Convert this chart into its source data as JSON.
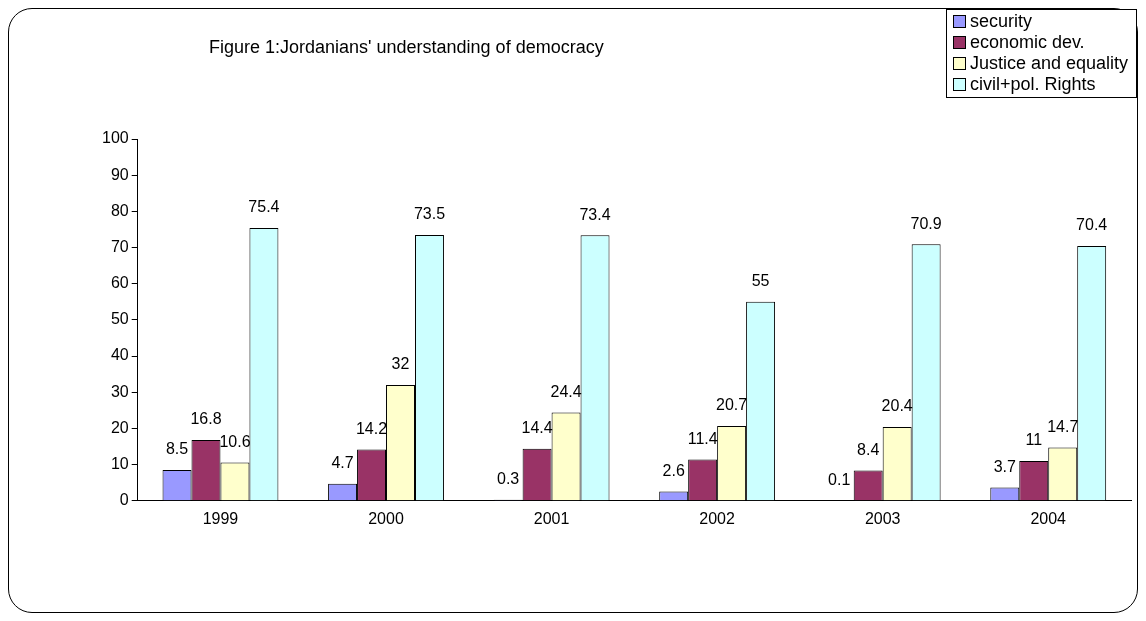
{
  "chart_data": {
    "type": "bar",
    "title": "Figure 1:Jordanians' understanding of democracy",
    "categories": [
      "1999",
      "2000",
      "2001",
      "2002",
      "2003",
      "2004"
    ],
    "series": [
      {
        "name": "security",
        "color": "#9999ff",
        "values": [
          8.5,
          4.7,
          0.3,
          2.6,
          0.1,
          3.7
        ]
      },
      {
        "name": "economic dev.",
        "color": "#993366",
        "values": [
          16.8,
          14.2,
          14.4,
          11.4,
          8.4,
          11
        ]
      },
      {
        "name": "Justice and equality",
        "color": "#ffffcc",
        "values": [
          10.6,
          32,
          24.4,
          20.7,
          20.4,
          14.7
        ]
      },
      {
        "name": "civil+pol. Rights",
        "color": "#ccffff",
        "values": [
          75.4,
          73.5,
          73.4,
          55,
          70.9,
          70.4
        ]
      }
    ],
    "ylim": [
      0,
      100
    ],
    "yticks": [
      0,
      10,
      20,
      30,
      40,
      50,
      60,
      70,
      80,
      90,
      100
    ],
    "grid": false,
    "legend": "top right",
    "data_labels": true
  }
}
